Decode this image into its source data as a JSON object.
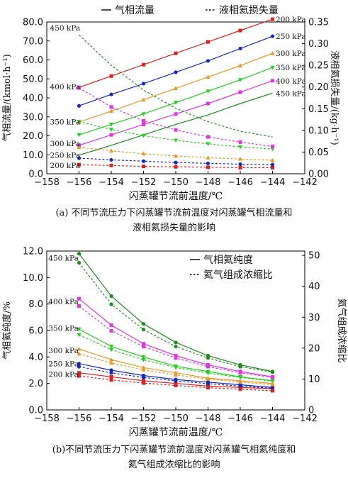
{
  "chart_data": [
    {
      "type": "line",
      "id": "a",
      "caption_line1": "(a) 不同节流压力下闪蒸罐节流前温度对闪蒸罐气相流量和",
      "caption_line2": "液相氦损失量的影响",
      "xlabel": "闪蒸罐节流前温度/℃",
      "ylabel_left": "气相流量/(kmol·h⁻¹)",
      "ylabel_right": "液相氦损失量/(kg·h⁻¹)",
      "xlim": [
        -158,
        -142
      ],
      "xticks": [
        -158,
        -156,
        -154,
        -152,
        -150,
        -148,
        -146,
        -144,
        -142
      ],
      "ylim_left": [
        0,
        80
      ],
      "yticks_left": [
        0,
        10,
        20,
        30,
        40,
        50,
        60,
        70,
        80
      ],
      "ytick_labels_left": [
        "0.0",
        "10.0",
        "20.0",
        "30.0",
        "40.0",
        "50.0",
        "60.0",
        "70.0",
        "80.0"
      ],
      "ylim_right": [
        0,
        0.35
      ],
      "yticks_right": [
        0,
        0.05,
        0.1,
        0.15,
        0.2,
        0.25,
        0.3,
        0.35
      ],
      "ytick_labels_right": [
        "0.00",
        "0.05",
        "0.10",
        "0.15",
        "0.20",
        "0.25",
        "0.30",
        "0.35"
      ],
      "legend": {
        "placement": "top",
        "solid_label": "气相流量",
        "dashed_label": "液相氦损失量"
      },
      "x": [
        -156,
        -154,
        -152,
        -150,
        -148,
        -146,
        -144
      ],
      "series": [
        {
          "name": "200 kPa",
          "color": "#e0201e",
          "marker": "square",
          "axis": "left",
          "style": "solid",
          "values": [
            45.5,
            51.5,
            57.5,
            63.5,
            69.5,
            75.5,
            81.5
          ]
        },
        {
          "name": "250 kPa",
          "color": "#1326c8",
          "marker": "circle",
          "axis": "left",
          "style": "solid",
          "values": [
            35.8,
            41.8,
            47.5,
            53.5,
            59.5,
            66,
            72.5
          ]
        },
        {
          "name": "300 kPa",
          "color": "#f0961e",
          "marker": "triangle",
          "axis": "left",
          "style": "solid",
          "values": [
            27.2,
            33,
            39,
            45,
            51,
            57,
            63.5
          ]
        },
        {
          "name": "350 kPa",
          "color": "#1ed21e",
          "marker": "triangle-down",
          "axis": "left",
          "style": "solid",
          "values": [
            20.5,
            26,
            31.5,
            37.5,
            43.5,
            49.5,
            56
          ]
        },
        {
          "name": "400 kPa",
          "color": "#e632e6",
          "marker": "square",
          "axis": "left",
          "style": "solid",
          "values": [
            15,
            20.5,
            26,
            31.5,
            37,
            43,
            49
          ]
        },
        {
          "name": "450 kPa",
          "color": "#1a8c1a",
          "marker": "none",
          "axis": "left",
          "style": "solid",
          "values": [
            9.8,
            15,
            20.5,
            26,
            31,
            37,
            42.5
          ]
        },
        {
          "name": "200 kPa",
          "color": "#e0201e",
          "marker": "square",
          "axis": "right",
          "style": "dashed",
          "values": [
            0.021,
            0.019,
            0.017,
            0.016,
            0.015,
            0.014,
            0.014
          ]
        },
        {
          "name": "250 kPa",
          "color": "#1326c8",
          "marker": "circle",
          "axis": "right",
          "style": "dashed",
          "values": [
            0.036,
            0.032,
            0.029,
            0.026,
            0.024,
            0.022,
            0.021
          ]
        },
        {
          "name": "300 kPa",
          "color": "#f0961e",
          "marker": "triangle",
          "axis": "right",
          "style": "dashed",
          "values": [
            0.061,
            0.053,
            0.046,
            0.041,
            0.037,
            0.034,
            0.031
          ]
        },
        {
          "name": "350 kPa",
          "color": "#1ed21e",
          "marker": "triangle-down",
          "axis": "right",
          "style": "dashed",
          "values": [
            0.12,
            0.102,
            0.088,
            0.077,
            0.069,
            0.062,
            0.057
          ]
        },
        {
          "name": "400 kPa",
          "color": "#e632e6",
          "marker": "square",
          "axis": "right",
          "style": "dashed",
          "values": [
            0.198,
            0.154,
            0.122,
            0.101,
            0.085,
            0.073,
            0.063
          ]
        },
        {
          "name": "450 kPa",
          "color": "#1a8c1a",
          "marker": "none",
          "axis": "right",
          "style": "dashed",
          "values": [
            0.32,
            0.25,
            0.193,
            0.151,
            0.12,
            0.098,
            0.085
          ]
        }
      ],
      "annotations": [
        {
          "text": "200 kPa",
          "x": -143.8,
          "y": 81.5,
          "axis": "left"
        },
        {
          "text": "250 kPa",
          "x": -143.8,
          "y": 72.5,
          "axis": "left"
        },
        {
          "text": "300 kPa",
          "x": -143.8,
          "y": 63.5,
          "axis": "left"
        },
        {
          "text": "350 kPa",
          "x": -143.8,
          "y": 56,
          "axis": "left"
        },
        {
          "text": "400 kPa",
          "x": -143.8,
          "y": 49,
          "axis": "left"
        },
        {
          "text": "450 kPa",
          "x": -143.8,
          "y": 42.5,
          "axis": "left"
        },
        {
          "text": "450 kPa",
          "x": -157.8,
          "y": 77,
          "axis": "left"
        },
        {
          "text": "400 kPa",
          "x": -157.8,
          "y": 46,
          "axis": "left"
        },
        {
          "text": "350 kPa",
          "x": -157.8,
          "y": 27.5,
          "axis": "left"
        },
        {
          "text": "300 kPa",
          "x": -157.8,
          "y": 16,
          "axis": "left"
        },
        {
          "text": "250 kPa",
          "x": -157.8,
          "y": 10,
          "axis": "left"
        },
        {
          "text": "200 kPa",
          "x": -157.8,
          "y": 4.5,
          "axis": "left"
        }
      ]
    },
    {
      "type": "line",
      "id": "b",
      "caption_line1": "(b)不同节流压力下闪蒸罐节流前温度对闪蒸罐气相氦纯度和",
      "caption_line2": "氦气组成浓缩比的影响",
      "xlabel": "闪蒸罐节流前温度/℃",
      "ylabel_left": "气相氦纯度/%",
      "ylabel_right": "氦气组成浓缩比",
      "xlim": [
        -158,
        -142
      ],
      "xticks": [
        -158,
        -156,
        -154,
        -152,
        -150,
        -148,
        -146,
        -144,
        -142
      ],
      "ylim_left": [
        0,
        12
      ],
      "yticks_left": [
        0,
        2,
        4,
        6,
        8,
        10,
        12
      ],
      "ytick_labels_left": [
        "0.0",
        "2.0",
        "4.0",
        "6.0",
        "8.0",
        "10.0",
        "12.0"
      ],
      "ylim_right": [
        0,
        51.4
      ],
      "yticks_right": [
        0,
        10,
        20,
        30,
        40,
        50
      ],
      "ytick_labels_right": [
        "0",
        "10",
        "20",
        "30",
        "40",
        "50"
      ],
      "legend": {
        "placement": "top-right",
        "solid_label": "气相氦纯度",
        "dashed_label": "氦气组成浓缩比"
      },
      "x": [
        -156,
        -154,
        -152,
        -150,
        -148,
        -146,
        -144
      ],
      "series": [
        {
          "name": "450 kPa",
          "color": "#1a8c1a",
          "marker": "circle",
          "axis": "left",
          "style": "solid",
          "values": [
            11.8,
            8.6,
            6.5,
            5.1,
            4.1,
            3.4,
            2.9
          ]
        },
        {
          "name": "400 kPa",
          "color": "#e632e6",
          "marker": "square",
          "axis": "left",
          "style": "solid",
          "values": [
            8.4,
            6.4,
            5,
            4.1,
            3.4,
            2.9,
            2.5
          ]
        },
        {
          "name": "350 kPa",
          "color": "#1ed21e",
          "marker": "triangle-down",
          "axis": "left",
          "style": "solid",
          "values": [
            6.1,
            4.8,
            4,
            3.3,
            2.9,
            2.5,
            2.2
          ]
        },
        {
          "name": "300 kPa",
          "color": "#f0961e",
          "marker": "triangle",
          "axis": "left",
          "style": "solid",
          "values": [
            4.6,
            3.8,
            3.2,
            2.8,
            2.4,
            2.2,
            2
          ]
        },
        {
          "name": "250 kPa",
          "color": "#1326c8",
          "marker": "circle",
          "axis": "left",
          "style": "solid",
          "values": [
            3.5,
            3,
            2.6,
            2.3,
            2.1,
            1.9,
            1.7
          ]
        },
        {
          "name": "200 kPa",
          "color": "#e0201e",
          "marker": "square",
          "axis": "left",
          "style": "solid",
          "values": [
            2.8,
            2.5,
            2.2,
            2,
            1.8,
            1.7,
            1.6
          ]
        },
        {
          "name": "450 kPa",
          "color": "#1a8c1a",
          "marker": "circle",
          "axis": "right",
          "style": "dashed",
          "values": [
            47.6,
            34.2,
            26,
            20.5,
            16.8,
            14,
            12.2
          ]
        },
        {
          "name": "400 kPa",
          "color": "#e632e6",
          "marker": "square",
          "axis": "right",
          "style": "dashed",
          "values": [
            33.6,
            25.6,
            20.5,
            16.8,
            14,
            12,
            10.5
          ]
        },
        {
          "name": "350 kPa",
          "color": "#1ed21e",
          "marker": "triangle-down",
          "axis": "right",
          "style": "dashed",
          "values": [
            24.3,
            19.5,
            16.2,
            13.7,
            11.9,
            10.5,
            9.3
          ]
        },
        {
          "name": "300 kPa",
          "color": "#f0961e",
          "marker": "triangle",
          "axis": "right",
          "style": "dashed",
          "values": [
            18.2,
            15.2,
            13,
            11.3,
            10,
            9,
            8.2
          ]
        },
        {
          "name": "250 kPa",
          "color": "#1326c8",
          "marker": "circle",
          "axis": "right",
          "style": "dashed",
          "values": [
            14,
            12,
            10.5,
            9.4,
            8.5,
            7.7,
            7
          ]
        },
        {
          "name": "200 kPa",
          "color": "#e0201e",
          "marker": "square",
          "axis": "right",
          "style": "dashed",
          "values": [
            11,
            9.7,
            8.7,
            7.9,
            7.2,
            6.7,
            6.2
          ]
        }
      ],
      "annotations": [
        {
          "text": "450 kPa",
          "x": -157.9,
          "y": 11.5,
          "axis": "left"
        },
        {
          "text": "400 kPa",
          "x": -157.9,
          "y": 8.2,
          "axis": "left"
        },
        {
          "text": "350 kPa",
          "x": -157.9,
          "y": 6.2,
          "axis": "left"
        },
        {
          "text": "300 kPa",
          "x": -157.9,
          "y": 4.5,
          "axis": "left"
        },
        {
          "text": "250 kPa",
          "x": -157.9,
          "y": 3.5,
          "axis": "left"
        },
        {
          "text": "200 kPa",
          "x": -157.9,
          "y": 2.7,
          "axis": "left"
        }
      ]
    }
  ]
}
